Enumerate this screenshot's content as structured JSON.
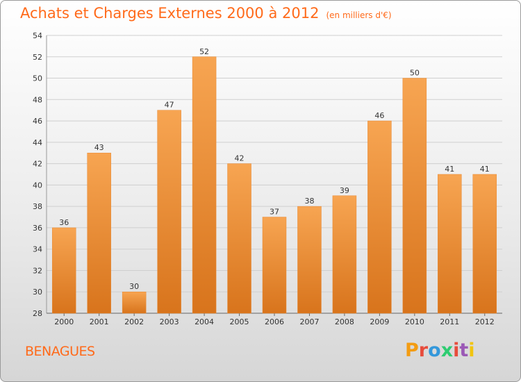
{
  "chart_data": {
    "type": "bar",
    "title": "Achats et Charges Externes 2000 à 2012",
    "subtitle": "(en milliers d'€)",
    "categories": [
      "2000",
      "2001",
      "2002",
      "2003",
      "2004",
      "2005",
      "2006",
      "2007",
      "2008",
      "2009",
      "2010",
      "2011",
      "2012"
    ],
    "values": [
      36,
      43,
      30,
      47,
      52,
      42,
      37,
      38,
      39,
      46,
      50,
      41,
      41
    ],
    "ylim": [
      28,
      54
    ],
    "yticks": [
      28,
      30,
      32,
      34,
      36,
      38,
      40,
      42,
      44,
      46,
      48,
      50,
      52,
      54
    ],
    "grid": true,
    "bar_color": "#f5a04e",
    "bar_color_dark": "#d97520"
  },
  "footer": {
    "town": "BENAGUES",
    "logo_text": "Proxiti",
    "logo_colors": [
      "#f39c12",
      "#e74c3c",
      "#3498db",
      "#2ecc71",
      "#e74c3c",
      "#9b59b6",
      "#f1c40f"
    ]
  }
}
